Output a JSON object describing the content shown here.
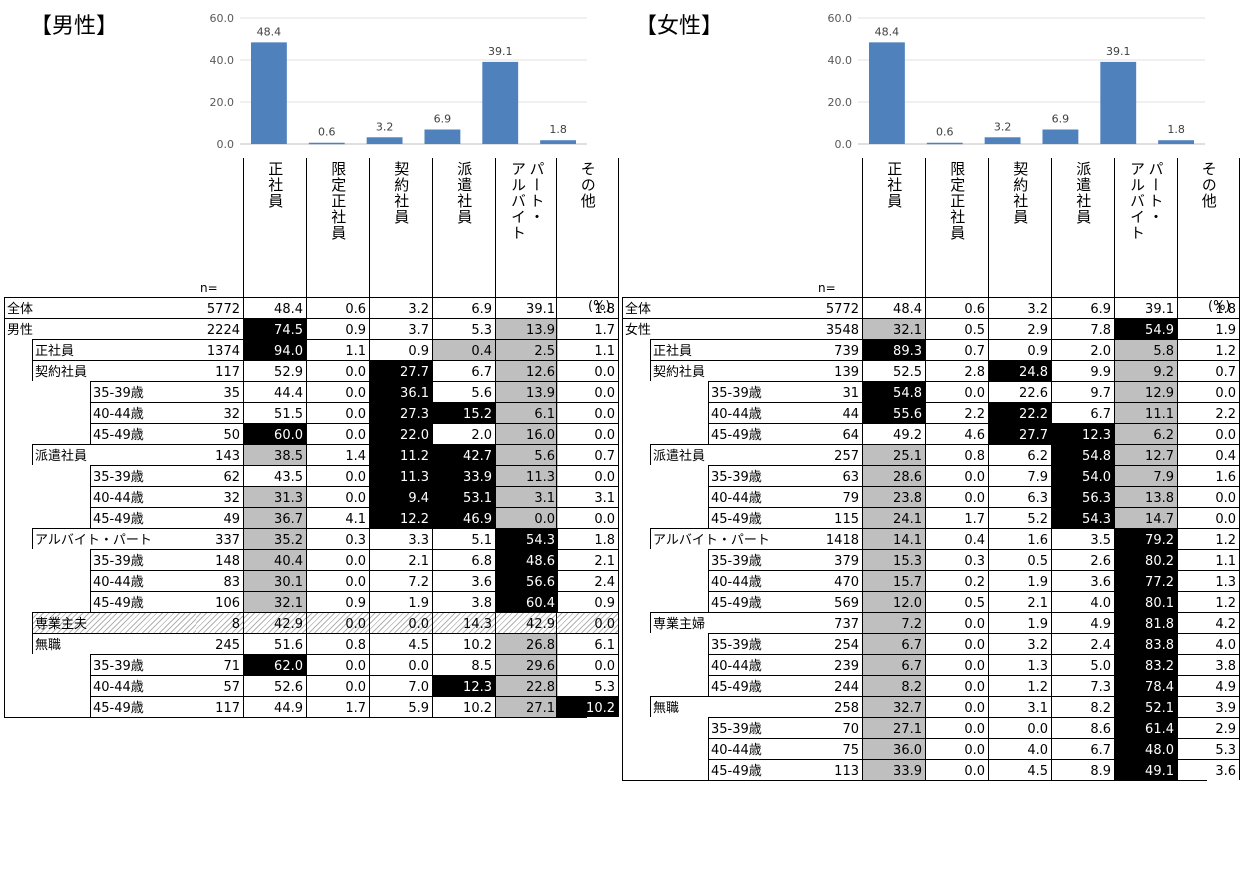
{
  "panels": [
    {
      "title": "【男性】",
      "chart_data": {
        "type": "bar",
        "categories": [
          "正社員",
          "限定正社員",
          "契約社員",
          "派遣社員",
          "パート・アルバイト",
          "その他"
        ],
        "values": [
          48.4,
          0.6,
          3.2,
          6.9,
          39.1,
          1.8
        ],
        "ylim": [
          0,
          60
        ],
        "yticks": [
          "0.0",
          "20.0",
          "40.0",
          "60.0"
        ],
        "grid": true,
        "color": "#4f81bd",
        "title": "",
        "xlabel": "",
        "ylabel": ""
      },
      "n_label": "n=",
      "pct_unit": "(%)",
      "rows": [
        {
          "l1": "全体",
          "l2": "",
          "l3": "",
          "n": "5772",
          "v": [
            "48.4",
            "0.6",
            "3.2",
            "6.9",
            "39.1",
            "1.8"
          ],
          "hl": [
            "",
            "",
            "",
            "",
            "",
            ""
          ],
          "hatch": false
        },
        {
          "l1": "男性",
          "l2": "",
          "l3": "",
          "n": "2224",
          "v": [
            "74.5",
            "0.9",
            "3.7",
            "5.3",
            "13.9",
            "1.7"
          ],
          "hl": [
            "b",
            "",
            "",
            "",
            "g",
            ""
          ],
          "hatch": false
        },
        {
          "l1": "",
          "l2": "正社員",
          "l3": "",
          "n": "1374",
          "v": [
            "94.0",
            "1.1",
            "0.9",
            "0.4",
            "2.5",
            "1.1"
          ],
          "hl": [
            "b",
            "",
            "",
            "g",
            "g",
            ""
          ],
          "hatch": false
        },
        {
          "l1": "",
          "l2": "契約社員",
          "l3": "",
          "n": "117",
          "v": [
            "52.9",
            "0.0",
            "27.7",
            "6.7",
            "12.6",
            "0.0"
          ],
          "hl": [
            "",
            "",
            "b",
            "",
            "g",
            ""
          ],
          "hatch": false
        },
        {
          "l1": "",
          "l2": "",
          "l3": "35-39歳",
          "n": "35",
          "v": [
            "44.4",
            "0.0",
            "36.1",
            "5.6",
            "13.9",
            "0.0"
          ],
          "hl": [
            "",
            "",
            "b",
            "",
            "g",
            ""
          ],
          "hatch": false
        },
        {
          "l1": "",
          "l2": "",
          "l3": "40-44歳",
          "n": "32",
          "v": [
            "51.5",
            "0.0",
            "27.3",
            "15.2",
            "6.1",
            "0.0"
          ],
          "hl": [
            "",
            "",
            "b",
            "b",
            "g",
            ""
          ],
          "hatch": false
        },
        {
          "l1": "",
          "l2": "",
          "l3": "45-49歳",
          "n": "50",
          "v": [
            "60.0",
            "0.0",
            "22.0",
            "2.0",
            "16.0",
            "0.0"
          ],
          "hl": [
            "b",
            "",
            "b",
            "",
            "g",
            ""
          ],
          "hatch": false
        },
        {
          "l1": "",
          "l2": "派遣社員",
          "l3": "",
          "n": "143",
          "v": [
            "38.5",
            "1.4",
            "11.2",
            "42.7",
            "5.6",
            "0.7"
          ],
          "hl": [
            "g",
            "",
            "b",
            "b",
            "g",
            ""
          ],
          "hatch": false
        },
        {
          "l1": "",
          "l2": "",
          "l3": "35-39歳",
          "n": "62",
          "v": [
            "43.5",
            "0.0",
            "11.3",
            "33.9",
            "11.3",
            "0.0"
          ],
          "hl": [
            "",
            "",
            "b",
            "b",
            "g",
            ""
          ],
          "hatch": false
        },
        {
          "l1": "",
          "l2": "",
          "l3": "40-44歳",
          "n": "32",
          "v": [
            "31.3",
            "0.0",
            "9.4",
            "53.1",
            "3.1",
            "3.1"
          ],
          "hl": [
            "g",
            "",
            "b",
            "b",
            "g",
            ""
          ],
          "hatch": false
        },
        {
          "l1": "",
          "l2": "",
          "l3": "45-49歳",
          "n": "49",
          "v": [
            "36.7",
            "4.1",
            "12.2",
            "46.9",
            "0.0",
            "0.0"
          ],
          "hl": [
            "g",
            "",
            "b",
            "b",
            "g",
            ""
          ],
          "hatch": false
        },
        {
          "l1": "",
          "l2": "アルバイト・パート",
          "l3": "",
          "n": "337",
          "v": [
            "35.2",
            "0.3",
            "3.3",
            "5.1",
            "54.3",
            "1.8"
          ],
          "hl": [
            "g",
            "",
            "",
            "",
            "b",
            ""
          ],
          "hatch": false
        },
        {
          "l1": "",
          "l2": "",
          "l3": "35-39歳",
          "n": "148",
          "v": [
            "40.4",
            "0.0",
            "2.1",
            "6.8",
            "48.6",
            "2.1"
          ],
          "hl": [
            "g",
            "",
            "",
            "",
            "b",
            ""
          ],
          "hatch": false
        },
        {
          "l1": "",
          "l2": "",
          "l3": "40-44歳",
          "n": "83",
          "v": [
            "30.1",
            "0.0",
            "7.2",
            "3.6",
            "56.6",
            "2.4"
          ],
          "hl": [
            "g",
            "",
            "",
            "",
            "b",
            ""
          ],
          "hatch": false
        },
        {
          "l1": "",
          "l2": "",
          "l3": "45-49歳",
          "n": "106",
          "v": [
            "32.1",
            "0.9",
            "1.9",
            "3.8",
            "60.4",
            "0.9"
          ],
          "hl": [
            "g",
            "",
            "",
            "",
            "b",
            ""
          ],
          "hatch": false
        },
        {
          "l1": "",
          "l2": "専業主夫",
          "l3": "",
          "n": "8",
          "v": [
            "42.9",
            "0.0",
            "0.0",
            "14.3",
            "42.9",
            "0.0"
          ],
          "hl": [
            "",
            "",
            "",
            "",
            "",
            ""
          ],
          "hatch": true
        },
        {
          "l1": "",
          "l2": "無職",
          "l3": "",
          "n": "245",
          "v": [
            "51.6",
            "0.8",
            "4.5",
            "10.2",
            "26.8",
            "6.1"
          ],
          "hl": [
            "",
            "",
            "",
            "",
            "g",
            ""
          ],
          "hatch": false
        },
        {
          "l1": "",
          "l2": "",
          "l3": "35-39歳",
          "n": "71",
          "v": [
            "62.0",
            "0.0",
            "0.0",
            "8.5",
            "29.6",
            "0.0"
          ],
          "hl": [
            "b",
            "",
            "",
            "",
            "g",
            ""
          ],
          "hatch": false
        },
        {
          "l1": "",
          "l2": "",
          "l3": "40-44歳",
          "n": "57",
          "v": [
            "52.6",
            "0.0",
            "7.0",
            "12.3",
            "22.8",
            "5.3"
          ],
          "hl": [
            "",
            "",
            "",
            "b",
            "g",
            ""
          ],
          "hatch": false
        },
        {
          "l1": "",
          "l2": "",
          "l3": "45-49歳",
          "n": "117",
          "v": [
            "44.9",
            "1.7",
            "5.9",
            "10.2",
            "27.1",
            "10.2"
          ],
          "hl": [
            "",
            "",
            "",
            "",
            "g",
            "b"
          ],
          "hatch": false
        }
      ]
    },
    {
      "title": "【女性】",
      "chart_data": {
        "type": "bar",
        "categories": [
          "正社員",
          "限定正社員",
          "契約社員",
          "派遣社員",
          "パート・アルバイト",
          "その他"
        ],
        "values": [
          48.4,
          0.6,
          3.2,
          6.9,
          39.1,
          1.8
        ],
        "ylim": [
          0,
          60
        ],
        "yticks": [
          "0.0",
          "20.0",
          "40.0",
          "60.0"
        ],
        "grid": true,
        "color": "#4f81bd",
        "title": "",
        "xlabel": "",
        "ylabel": ""
      },
      "n_label": "n=",
      "pct_unit": "(%)",
      "rows": [
        {
          "l1": "全体",
          "l2": "",
          "l3": "",
          "n": "5772",
          "v": [
            "48.4",
            "0.6",
            "3.2",
            "6.9",
            "39.1",
            "1.8"
          ],
          "hl": [
            "",
            "",
            "",
            "",
            "",
            ""
          ],
          "hatch": false
        },
        {
          "l1": "女性",
          "l2": "",
          "l3": "",
          "n": "3548",
          "v": [
            "32.1",
            "0.5",
            "2.9",
            "7.8",
            "54.9",
            "1.9"
          ],
          "hl": [
            "g",
            "",
            "",
            "",
            "b",
            ""
          ],
          "hatch": false
        },
        {
          "l1": "",
          "l2": "正社員",
          "l3": "",
          "n": "739",
          "v": [
            "89.3",
            "0.7",
            "0.9",
            "2.0",
            "5.8",
            "1.2"
          ],
          "hl": [
            "b",
            "",
            "",
            "",
            "g",
            ""
          ],
          "hatch": false
        },
        {
          "l1": "",
          "l2": "契約社員",
          "l3": "",
          "n": "139",
          "v": [
            "52.5",
            "2.8",
            "24.8",
            "9.9",
            "9.2",
            "0.7"
          ],
          "hl": [
            "",
            "",
            "b",
            "",
            "g",
            ""
          ],
          "hatch": false
        },
        {
          "l1": "",
          "l2": "",
          "l3": "35-39歳",
          "n": "31",
          "v": [
            "54.8",
            "0.0",
            "22.6",
            "9.7",
            "12.9",
            "0.0"
          ],
          "hl": [
            "b",
            "",
            "",
            "",
            "g",
            ""
          ],
          "hatch": false
        },
        {
          "l1": "",
          "l2": "",
          "l3": "40-44歳",
          "n": "44",
          "v": [
            "55.6",
            "2.2",
            "22.2",
            "6.7",
            "11.1",
            "2.2"
          ],
          "hl": [
            "b",
            "",
            "b",
            "",
            "g",
            ""
          ],
          "hatch": false
        },
        {
          "l1": "",
          "l2": "",
          "l3": "45-49歳",
          "n": "64",
          "v": [
            "49.2",
            "4.6",
            "27.7",
            "12.3",
            "6.2",
            "0.0"
          ],
          "hl": [
            "",
            "",
            "b",
            "b",
            "g",
            ""
          ],
          "hatch": false
        },
        {
          "l1": "",
          "l2": "派遣社員",
          "l3": "",
          "n": "257",
          "v": [
            "25.1",
            "0.8",
            "6.2",
            "54.8",
            "12.7",
            "0.4"
          ],
          "hl": [
            "g",
            "",
            "",
            "b",
            "g",
            ""
          ],
          "hatch": false
        },
        {
          "l1": "",
          "l2": "",
          "l3": "35-39歳",
          "n": "63",
          "v": [
            "28.6",
            "0.0",
            "7.9",
            "54.0",
            "7.9",
            "1.6"
          ],
          "hl": [
            "g",
            "",
            "",
            "b",
            "g",
            ""
          ],
          "hatch": false
        },
        {
          "l1": "",
          "l2": "",
          "l3": "40-44歳",
          "n": "79",
          "v": [
            "23.8",
            "0.0",
            "6.3",
            "56.3",
            "13.8",
            "0.0"
          ],
          "hl": [
            "g",
            "",
            "",
            "b",
            "g",
            ""
          ],
          "hatch": false
        },
        {
          "l1": "",
          "l2": "",
          "l3": "45-49歳",
          "n": "115",
          "v": [
            "24.1",
            "1.7",
            "5.2",
            "54.3",
            "14.7",
            "0.0"
          ],
          "hl": [
            "g",
            "",
            "",
            "b",
            "g",
            ""
          ],
          "hatch": false
        },
        {
          "l1": "",
          "l2": "アルバイト・パート",
          "l3": "",
          "n": "1418",
          "v": [
            "14.1",
            "0.4",
            "1.6",
            "3.5",
            "79.2",
            "1.2"
          ],
          "hl": [
            "g",
            "",
            "",
            "",
            "b",
            ""
          ],
          "hatch": false
        },
        {
          "l1": "",
          "l2": "",
          "l3": "35-39歳",
          "n": "379",
          "v": [
            "15.3",
            "0.3",
            "0.5",
            "2.6",
            "80.2",
            "1.1"
          ],
          "hl": [
            "g",
            "",
            "",
            "",
            "b",
            ""
          ],
          "hatch": false
        },
        {
          "l1": "",
          "l2": "",
          "l3": "40-44歳",
          "n": "470",
          "v": [
            "15.7",
            "0.2",
            "1.9",
            "3.6",
            "77.2",
            "1.3"
          ],
          "hl": [
            "g",
            "",
            "",
            "",
            "b",
            ""
          ],
          "hatch": false
        },
        {
          "l1": "",
          "l2": "",
          "l3": "45-49歳",
          "n": "569",
          "v": [
            "12.0",
            "0.5",
            "2.1",
            "4.0",
            "80.1",
            "1.2"
          ],
          "hl": [
            "g",
            "",
            "",
            "",
            "b",
            ""
          ],
          "hatch": false
        },
        {
          "l1": "",
          "l2": "専業主婦",
          "l3": "",
          "n": "737",
          "v": [
            "7.2",
            "0.0",
            "1.9",
            "4.9",
            "81.8",
            "4.2"
          ],
          "hl": [
            "g",
            "",
            "",
            "",
            "b",
            ""
          ],
          "hatch": false
        },
        {
          "l1": "",
          "l2": "",
          "l3": "35-39歳",
          "n": "254",
          "v": [
            "6.7",
            "0.0",
            "3.2",
            "2.4",
            "83.8",
            "4.0"
          ],
          "hl": [
            "g",
            "",
            "",
            "",
            "b",
            ""
          ],
          "hatch": false
        },
        {
          "l1": "",
          "l2": "",
          "l3": "40-44歳",
          "n": "239",
          "v": [
            "6.7",
            "0.0",
            "1.3",
            "5.0",
            "83.2",
            "3.8"
          ],
          "hl": [
            "g",
            "",
            "",
            "",
            "b",
            ""
          ],
          "hatch": false
        },
        {
          "l1": "",
          "l2": "",
          "l3": "45-49歳",
          "n": "244",
          "v": [
            "8.2",
            "0.0",
            "1.2",
            "7.3",
            "78.4",
            "4.9"
          ],
          "hl": [
            "g",
            "",
            "",
            "",
            "b",
            ""
          ],
          "hatch": false
        },
        {
          "l1": "",
          "l2": "無職",
          "l3": "",
          "n": "258",
          "v": [
            "32.7",
            "0.0",
            "3.1",
            "8.2",
            "52.1",
            "3.9"
          ],
          "hl": [
            "g",
            "",
            "",
            "",
            "b",
            ""
          ],
          "hatch": false
        },
        {
          "l1": "",
          "l2": "",
          "l3": "35-39歳",
          "n": "70",
          "v": [
            "27.1",
            "0.0",
            "0.0",
            "8.6",
            "61.4",
            "2.9"
          ],
          "hl": [
            "g",
            "",
            "",
            "",
            "b",
            ""
          ],
          "hatch": false
        },
        {
          "l1": "",
          "l2": "",
          "l3": "40-44歳",
          "n": "75",
          "v": [
            "36.0",
            "0.0",
            "4.0",
            "6.7",
            "48.0",
            "5.3"
          ],
          "hl": [
            "g",
            "",
            "",
            "",
            "b",
            ""
          ],
          "hatch": false
        },
        {
          "l1": "",
          "l2": "",
          "l3": "45-49歳",
          "n": "113",
          "v": [
            "33.9",
            "0.0",
            "4.5",
            "8.9",
            "49.1",
            "3.6"
          ],
          "hl": [
            "g",
            "",
            "",
            "",
            "b",
            ""
          ],
          "hatch": false
        }
      ]
    }
  ],
  "column_headers": [
    "正社員",
    "限定正社員",
    "契約社員",
    "派遣社員",
    "パート・アルバイト",
    "その他"
  ]
}
